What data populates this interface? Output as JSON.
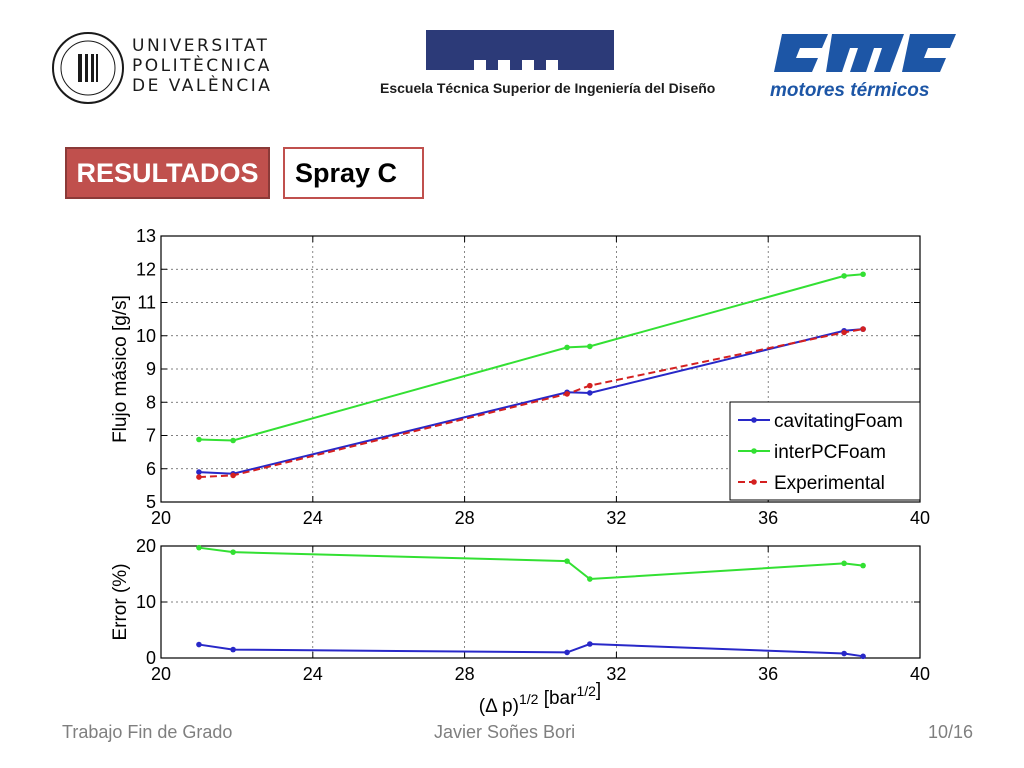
{
  "logos": {
    "upv": {
      "lines": [
        "UNIVERSITAT",
        "POLITÈCNICA",
        "DE VALÈNCIA"
      ],
      "color": "#1a1a1a"
    },
    "etsid": {
      "text": "Escuela Técnica Superior de Ingeniería del Diseño",
      "color": "#2c3a78"
    },
    "cmt": {
      "text": "motores térmicos",
      "color": "#1d56a6"
    }
  },
  "header": {
    "section": "RESULTADOS",
    "subtitle": "Spray C"
  },
  "chart_data": [
    {
      "type": "line",
      "ylabel": "Flujo másico [g/s]",
      "xlim": [
        20,
        40
      ],
      "ylim": [
        5,
        13
      ],
      "xticks": [
        20,
        24,
        28,
        32,
        36,
        40
      ],
      "yticks": [
        5,
        6,
        7,
        8,
        9,
        10,
        11,
        12,
        13
      ],
      "grid": true,
      "legend": "bottom-right",
      "series": [
        {
          "name": "cavitatingFoam",
          "color": "#2828c8",
          "dash": "solid",
          "x": [
            21.0,
            21.9,
            30.7,
            31.3,
            38.0,
            38.5
          ],
          "y": [
            5.9,
            5.85,
            8.3,
            8.28,
            10.15,
            10.2
          ]
        },
        {
          "name": "interPCFoam",
          "color": "#33e033",
          "dash": "solid",
          "x": [
            21.0,
            21.9,
            30.7,
            31.3,
            38.0,
            38.5
          ],
          "y": [
            6.88,
            6.85,
            9.65,
            9.68,
            11.8,
            11.85
          ]
        },
        {
          "name": "Experimental",
          "color": "#d42020",
          "dash": "dashed",
          "x": [
            21.0,
            21.9,
            30.7,
            31.3,
            38.0,
            38.5
          ],
          "y": [
            5.75,
            5.8,
            8.25,
            8.5,
            10.1,
            10.2
          ]
        }
      ]
    },
    {
      "type": "line",
      "ylabel": "Error (%)",
      "xlabel_base": "(Δ p)",
      "xlabel_exp": "1/2",
      "xlabel_unit": " [bar",
      "xlabel_unit_exp": "1/2",
      "xlabel_end": "]",
      "xlim": [
        20,
        40
      ],
      "ylim": [
        0,
        20
      ],
      "xticks": [
        20,
        24,
        28,
        32,
        36,
        40
      ],
      "yticks": [
        0,
        10,
        20
      ],
      "grid": true,
      "series": [
        {
          "color": "#33e033",
          "x": [
            21.0,
            21.9,
            30.7,
            31.3,
            38.0,
            38.5
          ],
          "y": [
            19.7,
            18.9,
            17.3,
            14.1,
            16.9,
            16.5
          ]
        },
        {
          "color": "#2828c8",
          "x": [
            21.0,
            21.9,
            30.7,
            31.3,
            38.0,
            38.5
          ],
          "y": [
            2.4,
            1.5,
            1.0,
            2.5,
            0.8,
            0.3
          ]
        }
      ]
    }
  ],
  "footer": {
    "left": "Trabajo Fin de Grado",
    "center": "Javier Soñes Bori",
    "page": "10/16"
  }
}
